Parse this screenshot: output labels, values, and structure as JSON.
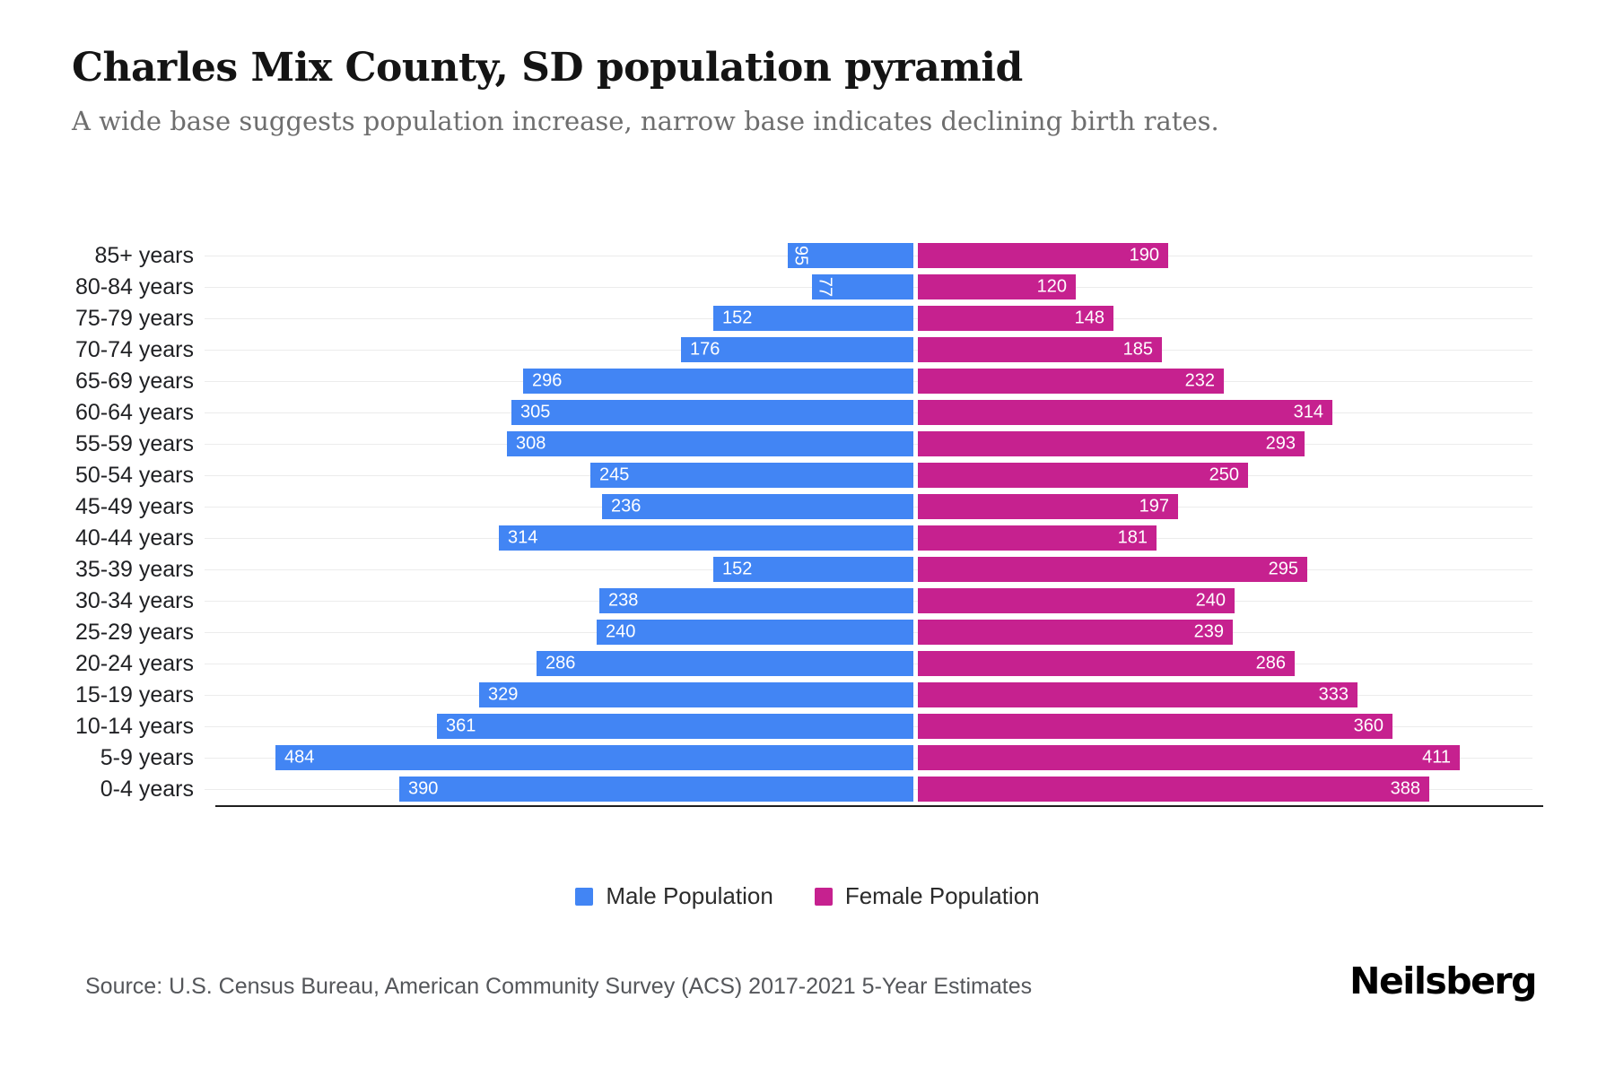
{
  "header": {
    "title": "Charles Mix County, SD population pyramid",
    "subtitle": "A wide base suggests population increase, narrow base indicates declining birth rates."
  },
  "chart_data": {
    "type": "bar",
    "variant": "population-pyramid",
    "orientation": "horizontal",
    "categories": [
      "85+ years",
      "80-84 years",
      "75-79 years",
      "70-74 years",
      "65-69 years",
      "60-64 years",
      "55-59 years",
      "50-54 years",
      "45-49 years",
      "40-44 years",
      "35-39 years",
      "30-34 years",
      "25-29 years",
      "20-24 years",
      "15-19 years",
      "10-14 years",
      "5-9 years",
      "0-4 years"
    ],
    "series": [
      {
        "name": "Male Population",
        "side": "left",
        "color": "#4285F4",
        "values": [
          95,
          77,
          152,
          176,
          296,
          305,
          308,
          245,
          236,
          314,
          152,
          238,
          240,
          286,
          329,
          361,
          484,
          390
        ]
      },
      {
        "name": "Female Population",
        "side": "right",
        "color": "#C6218F",
        "values": [
          190,
          120,
          148,
          185,
          232,
          314,
          293,
          250,
          197,
          181,
          295,
          240,
          239,
          286,
          333,
          360,
          411,
          388
        ]
      }
    ],
    "value_labels": "inside-bar-outer-end, white",
    "axis": {
      "x_axis_visible": false,
      "gridlines": true,
      "gridline_color": "#ececec",
      "baseline_color": "#1f1f1f"
    },
    "legend_position": "bottom-center"
  },
  "legend": {
    "items": [
      {
        "label": "Male Population",
        "color": "#4285F4"
      },
      {
        "label": "Female Population",
        "color": "#C6218F"
      }
    ]
  },
  "footer": {
    "source": "Source: U.S. Census Bureau, American Community Survey (ACS) 2017-2021 5-Year Estimates",
    "logo": "Neilsberg"
  }
}
